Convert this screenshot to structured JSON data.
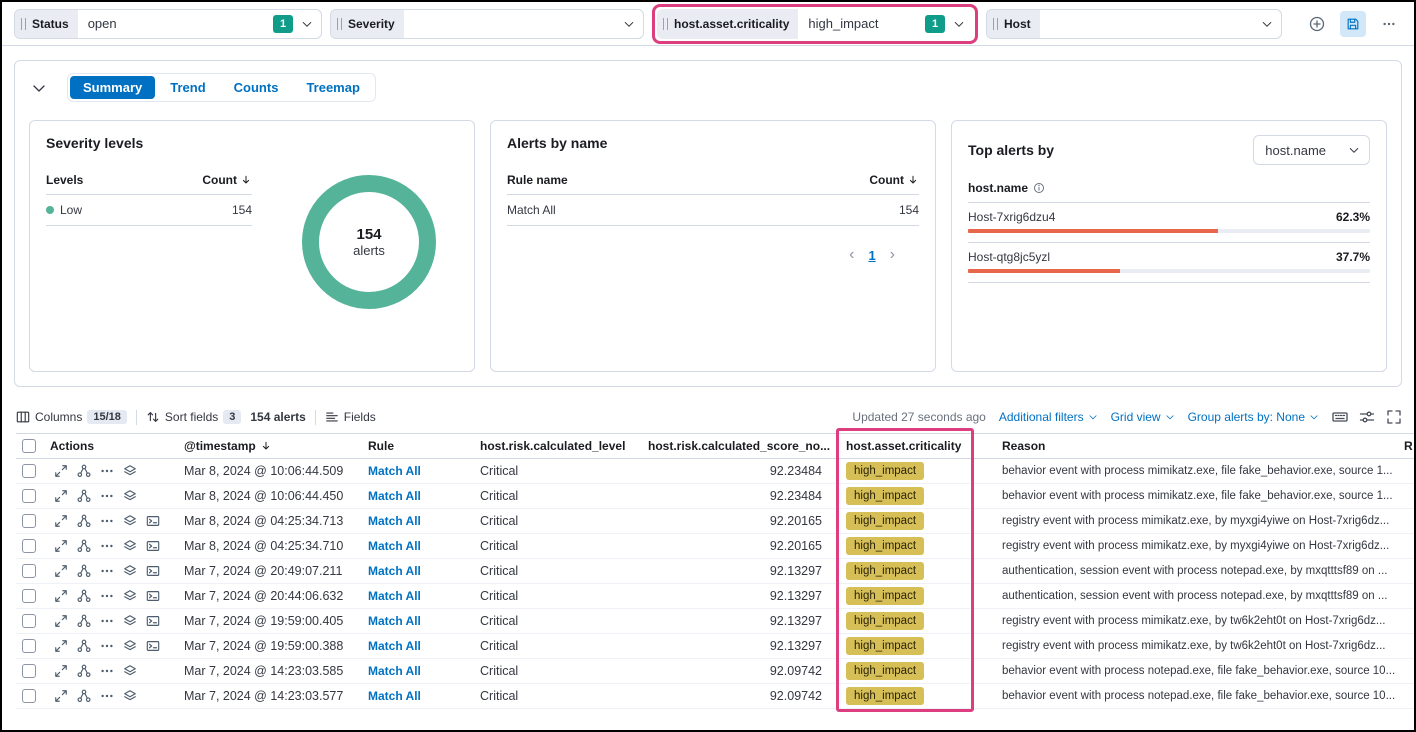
{
  "filter_bar": {
    "status": {
      "label": "Status",
      "value": "open",
      "badge": "1"
    },
    "severity": {
      "label": "Severity"
    },
    "criticality": {
      "label": "host.asset.criticality",
      "value": "high_impact",
      "badge": "1"
    },
    "host": {
      "label": "Host"
    }
  },
  "chart_tabs": {
    "summary": "Summary",
    "trend": "Trend",
    "counts": "Counts",
    "treemap": "Treemap"
  },
  "severity_panel": {
    "title": "Severity levels",
    "levels_header": "Levels",
    "count_header": "Count",
    "rows": [
      {
        "level": "Low",
        "count": "154"
      }
    ],
    "donut": {
      "value": "154",
      "label": "alerts"
    }
  },
  "alerts_by_name_panel": {
    "title": "Alerts by name",
    "rule_header": "Rule name",
    "count_header": "Count",
    "rows": [
      {
        "rule": "Match All",
        "count": "154"
      }
    ],
    "prev": "‹",
    "page": "1",
    "next": "›"
  },
  "top_alerts_panel": {
    "title": "Top alerts by",
    "selected_field": "host.name",
    "field_label": "host.name",
    "rows": [
      {
        "name": "Host-7xrig6dzu4",
        "pct": "62.3%",
        "width": 62.3
      },
      {
        "name": "Host-qtg8jc5yzl",
        "pct": "37.7%",
        "width": 37.7
      }
    ]
  },
  "table_toolbar": {
    "columns_label": "Columns",
    "columns_badge": "15/18",
    "sort_label": "Sort fields",
    "sort_badge": "3",
    "alert_count": "154 alerts",
    "fields_label": "Fields",
    "updated_text": "Updated 27 seconds ago",
    "additional_filters": "Additional filters",
    "grid_view": "Grid view",
    "group_by": "Group alerts by: None"
  },
  "table": {
    "headers": {
      "actions": "Actions",
      "timestamp": "@timestamp",
      "rule": "Rule",
      "risk_level": "host.risk.calculated_level",
      "risk_score": "host.risk.calculated_score_no...",
      "criticality": "host.asset.criticality",
      "reason": "Reason",
      "clipped": "R"
    },
    "rows": [
      {
        "timestamp": "Mar 8, 2024 @ 10:06:44.509",
        "rule": "Match All",
        "risk_level": "Critical",
        "risk_score": "92.23484",
        "criticality": "high_impact",
        "reason": "behavior event with process mimikatz.exe, file fake_behavior.exe, source 1...",
        "session_icon": false
      },
      {
        "timestamp": "Mar 8, 2024 @ 10:06:44.450",
        "rule": "Match All",
        "risk_level": "Critical",
        "risk_score": "92.23484",
        "criticality": "high_impact",
        "reason": "behavior event with process mimikatz.exe, file fake_behavior.exe, source 1...",
        "session_icon": false
      },
      {
        "timestamp": "Mar 8, 2024 @ 04:25:34.713",
        "rule": "Match All",
        "risk_level": "Critical",
        "risk_score": "92.20165",
        "criticality": "high_impact",
        "reason": "registry event with process mimikatz.exe, by myxgi4yiwe on Host-7xrig6dz...",
        "session_icon": true
      },
      {
        "timestamp": "Mar 8, 2024 @ 04:25:34.710",
        "rule": "Match All",
        "risk_level": "Critical",
        "risk_score": "92.20165",
        "criticality": "high_impact",
        "reason": "registry event with process mimikatz.exe, by myxgi4yiwe on Host-7xrig6dz...",
        "session_icon": true
      },
      {
        "timestamp": "Mar 7, 2024 @ 20:49:07.211",
        "rule": "Match All",
        "risk_level": "Critical",
        "risk_score": "92.13297",
        "criticality": "high_impact",
        "reason": "authentication, session event with process notepad.exe, by mxqtttsf89 on ...",
        "session_icon": true
      },
      {
        "timestamp": "Mar 7, 2024 @ 20:44:06.632",
        "rule": "Match All",
        "risk_level": "Critical",
        "risk_score": "92.13297",
        "criticality": "high_impact",
        "reason": "authentication, session event with process notepad.exe, by mxqtttsf89 on ...",
        "session_icon": true
      },
      {
        "timestamp": "Mar 7, 2024 @ 19:59:00.405",
        "rule": "Match All",
        "risk_level": "Critical",
        "risk_score": "92.13297",
        "criticality": "high_impact",
        "reason": "registry event with process mimikatz.exe, by tw6k2eht0t on Host-7xrig6dz...",
        "session_icon": true
      },
      {
        "timestamp": "Mar 7, 2024 @ 19:59:00.388",
        "rule": "Match All",
        "risk_level": "Critical",
        "risk_score": "92.13297",
        "criticality": "high_impact",
        "reason": "registry event with process mimikatz.exe, by tw6k2eht0t on Host-7xrig6dz...",
        "session_icon": true
      },
      {
        "timestamp": "Mar 7, 2024 @ 14:23:03.585",
        "rule": "Match All",
        "risk_level": "Critical",
        "risk_score": "92.09742",
        "criticality": "high_impact",
        "reason": "behavior event with process notepad.exe, file fake_behavior.exe, source 10...",
        "session_icon": false
      },
      {
        "timestamp": "Mar 7, 2024 @ 14:23:03.577",
        "rule": "Match All",
        "risk_level": "Critical",
        "risk_score": "92.09742",
        "criticality": "high_impact",
        "reason": "behavior event with process notepad.exe, file fake_behavior.exe, source 10...",
        "session_icon": false
      }
    ]
  },
  "colors": {
    "primary_blue": "#0071c2",
    "filter_badge_teal": "#0f9d8a",
    "donut_teal": "#54b399",
    "bar_orange": "#e7664c",
    "criticality_badge_gold": "#d6bf57",
    "highlight_pink": "#dd3e7f"
  }
}
